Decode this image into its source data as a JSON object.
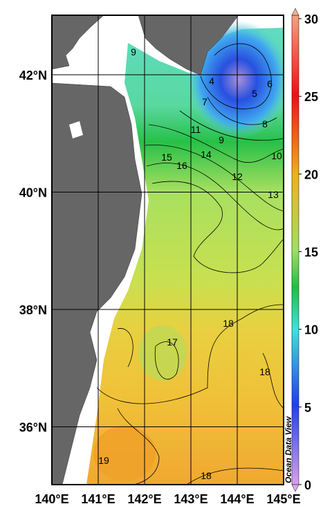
{
  "map": {
    "longitude_labels": [
      "140°E",
      "141°E",
      "142°E",
      "143°E",
      "144°E",
      "145°E"
    ],
    "latitude_labels": [
      "42°N",
      "40°N",
      "38°N",
      "36°N"
    ],
    "colorbar": {
      "range": [
        0,
        30
      ],
      "ticks": [
        0,
        5,
        10,
        15,
        20,
        25,
        30
      ]
    },
    "contour_labels": [
      "9",
      "4",
      "5",
      "6",
      "7",
      "8",
      "9",
      "11",
      "14",
      "15",
      "16",
      "12",
      "10",
      "13",
      "17",
      "18",
      "18",
      "19",
      "18"
    ],
    "watermark": "Ocean Data View"
  }
}
